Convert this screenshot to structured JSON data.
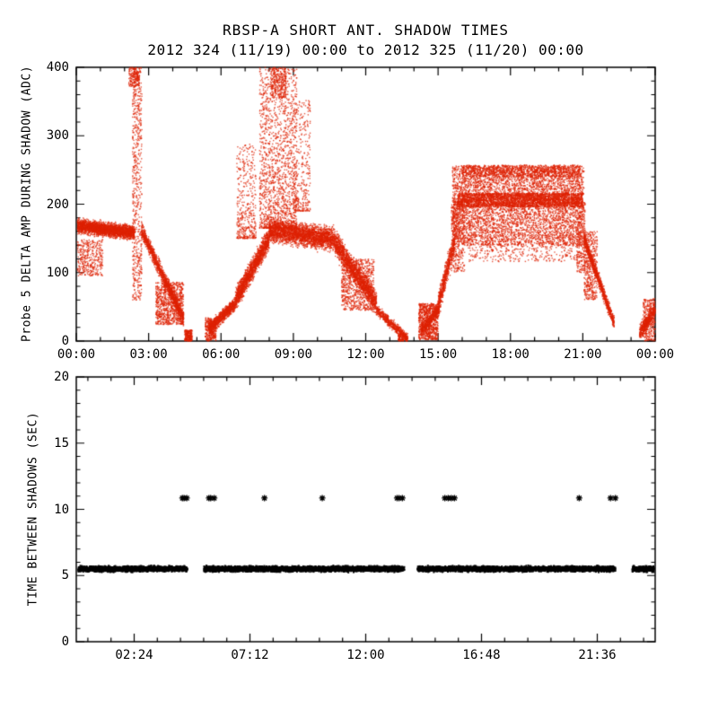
{
  "page": {
    "background": "#ffffff",
    "axis_color": "#000000"
  },
  "header": {
    "title": "RBSP-A SHORT ANT. SHADOW TIMES",
    "subtitle": "2012 324 (11/19) 00:00 to 2012 325 (11/20) 00:00"
  },
  "chart_data": [
    {
      "type": "scatter",
      "panel": "top",
      "title": "RBSP-A SHORT ANT. SHADOW TIMES",
      "subtitle": "2012 324 (11/19) 00:00 to 2012 325 (11/20) 00:00",
      "ylabel": "Probe 5 DELTA AMP DURING SHADOW (ADC)",
      "xlabel": "",
      "xlim": [
        0,
        24
      ],
      "ylim": [
        0,
        400
      ],
      "x_minor": 1,
      "x_minor_offset": 0,
      "y_minor": 20,
      "grid": false,
      "xticks": [
        {
          "t": 0,
          "label": "00:00"
        },
        {
          "t": 3,
          "label": "03:00"
        },
        {
          "t": 6,
          "label": "06:00"
        },
        {
          "t": 9,
          "label": "09:00"
        },
        {
          "t": 12,
          "label": "12:00"
        },
        {
          "t": 15,
          "label": "15:00"
        },
        {
          "t": 18,
          "label": "18:00"
        },
        {
          "t": 21,
          "label": "21:00"
        },
        {
          "t": 24,
          "label": "00:00"
        }
      ],
      "yticks": [
        {
          "v": 0,
          "label": "0"
        },
        {
          "v": 100,
          "label": "100"
        },
        {
          "v": 200,
          "label": "200"
        },
        {
          "v": 300,
          "label": "300"
        },
        {
          "v": 400,
          "label": "400"
        }
      ],
      "point_color": "#dd2200",
      "point_size": 1.4,
      "bands": [
        {
          "shape": "ribbon",
          "t": [
            0.05,
            2.4
          ],
          "c": [
            168,
            158
          ],
          "s": 14,
          "n": 2600
        },
        {
          "shape": "box",
          "t": [
            0.05,
            1.1
          ],
          "v": [
            95,
            148
          ],
          "n": 380
        },
        {
          "shape": "box",
          "t": [
            2.33,
            2.72
          ],
          "v": [
            60,
            400
          ],
          "n": 650
        },
        {
          "shape": "box",
          "t": [
            2.18,
            2.62
          ],
          "v": [
            372,
            400
          ],
          "n": 160
        },
        {
          "shape": "ribbon",
          "t": [
            2.7,
            4.45
          ],
          "c": [
            162,
            32
          ],
          "s": 16,
          "n": 1300
        },
        {
          "shape": "box",
          "t": [
            3.3,
            4.45
          ],
          "v": [
            24,
            86
          ],
          "n": 900
        },
        {
          "shape": "box",
          "t": [
            4.5,
            4.8
          ],
          "v": [
            0,
            16
          ],
          "n": 240
        },
        {
          "shape": "box",
          "t": [
            5.35,
            5.8
          ],
          "v": [
            0,
            34
          ],
          "n": 320
        },
        {
          "shape": "ribbon",
          "t": [
            5.5,
            6.6
          ],
          "c": [
            16,
            56
          ],
          "s": 13,
          "n": 900
        },
        {
          "shape": "ribbon",
          "t": [
            6.6,
            8.0
          ],
          "c": [
            60,
            150
          ],
          "s": 22,
          "n": 1600
        },
        {
          "shape": "plume",
          "t": [
            6.65,
            7.45
          ],
          "v": [
            150,
            288
          ],
          "p": 2.0,
          "n": 420
        },
        {
          "shape": "plume",
          "t": [
            7.6,
            9.15
          ],
          "v": [
            165,
            400
          ],
          "p": 1.7,
          "n": 1600
        },
        {
          "shape": "box",
          "t": [
            8.05,
            8.7
          ],
          "v": [
            355,
            400
          ],
          "n": 280
        },
        {
          "shape": "ribbon",
          "t": [
            8.0,
            10.6
          ],
          "c": [
            162,
            150
          ],
          "s": 23,
          "n": 2500
        },
        {
          "shape": "plume",
          "t": [
            9.0,
            9.7
          ],
          "v": [
            190,
            352
          ],
          "p": 1.8,
          "n": 330
        },
        {
          "shape": "ribbon",
          "t": [
            10.6,
            12.45
          ],
          "c": [
            150,
            55
          ],
          "s": 25,
          "n": 1700
        },
        {
          "shape": "box",
          "t": [
            11.0,
            12.35
          ],
          "v": [
            45,
            120
          ],
          "n": 800
        },
        {
          "shape": "ribbon",
          "t": [
            12.45,
            13.7
          ],
          "c": [
            45,
            4
          ],
          "s": 10,
          "n": 550
        },
        {
          "shape": "box",
          "t": [
            13.35,
            13.75
          ],
          "v": [
            0,
            12
          ],
          "n": 140
        },
        {
          "shape": "box",
          "t": [
            14.2,
            15.0
          ],
          "v": [
            2,
            55
          ],
          "n": 850
        },
        {
          "shape": "ribbon",
          "t": [
            14.3,
            15.05
          ],
          "c": [
            14,
            48
          ],
          "s": 12,
          "n": 420
        },
        {
          "shape": "ribbon",
          "t": [
            15.0,
            15.7
          ],
          "c": [
            52,
            148
          ],
          "s": 26,
          "n": 650
        },
        {
          "shape": "box",
          "t": [
            15.6,
            21.05
          ],
          "v": [
            140,
            256
          ],
          "n": 5200
        },
        {
          "shape": "box",
          "t": [
            15.8,
            21.0
          ],
          "v": [
            196,
            216
          ],
          "n": 2600
        },
        {
          "shape": "box",
          "t": [
            16.0,
            20.9
          ],
          "v": [
            240,
            257
          ],
          "n": 900
        },
        {
          "shape": "box",
          "t": [
            15.55,
            16.1
          ],
          "v": [
            100,
            205
          ],
          "n": 380
        },
        {
          "shape": "box",
          "t": [
            20.75,
            21.1
          ],
          "v": [
            100,
            205
          ],
          "n": 280
        },
        {
          "shape": "box",
          "t": [
            16.2,
            20.8
          ],
          "v": [
            116,
            142
          ],
          "n": 320
        },
        {
          "shape": "ribbon",
          "t": [
            21.05,
            22.3
          ],
          "c": [
            150,
            26
          ],
          "s": 14,
          "n": 1000
        },
        {
          "shape": "box",
          "t": [
            21.05,
            21.6
          ],
          "v": [
            60,
            160
          ],
          "n": 450
        },
        {
          "shape": "ribbon",
          "t": [
            23.35,
            24.0
          ],
          "c": [
            12,
            46
          ],
          "s": 16,
          "n": 520
        },
        {
          "shape": "box",
          "t": [
            23.5,
            24.0
          ],
          "v": [
            0,
            62
          ],
          "n": 300
        }
      ]
    },
    {
      "type": "scatter",
      "panel": "bottom",
      "title": "",
      "ylabel": "TIME BETWEEN SHADOWS (SEC)",
      "xlabel": "",
      "xlim": [
        0,
        24
      ],
      "ylim": [
        0,
        20
      ],
      "x_minor": 0.96,
      "x_minor_offset": 0.48,
      "y_minor": 1,
      "grid": false,
      "xticks": [
        {
          "t": 2.4,
          "label": "02:24"
        },
        {
          "t": 7.2,
          "label": "07:12"
        },
        {
          "t": 12,
          "label": "12:00"
        },
        {
          "t": 16.8,
          "label": "16:48"
        },
        {
          "t": 21.6,
          "label": "21:36"
        }
      ],
      "yticks": [
        {
          "v": 0,
          "label": "0"
        },
        {
          "v": 5,
          "label": "5"
        },
        {
          "v": 10,
          "label": "10"
        },
        {
          "v": 15,
          "label": "15"
        },
        {
          "v": 20,
          "label": "20"
        }
      ],
      "point_color": "#000000",
      "point_size": 2,
      "band": {
        "value": 5.5,
        "spread": 0.28,
        "points_per_hour": 430,
        "segments": [
          [
            0.08,
            4.6
          ],
          [
            5.3,
            13.6
          ],
          [
            14.15,
            22.35
          ],
          [
            23.05,
            23.95
          ]
        ]
      },
      "outliers": {
        "value": 10.85,
        "marker": "asterisk",
        "times": [
          4.4,
          4.47,
          4.58,
          5.5,
          5.57,
          5.72,
          7.8,
          10.2,
          13.3,
          13.38,
          13.52,
          15.28,
          15.42,
          15.55,
          15.68,
          20.85,
          22.15,
          22.35
        ]
      }
    }
  ]
}
